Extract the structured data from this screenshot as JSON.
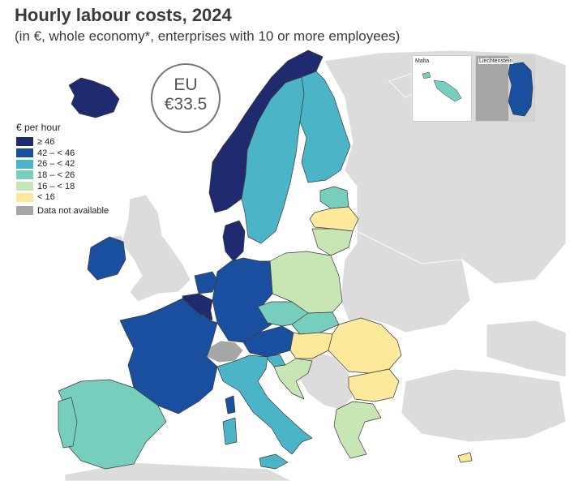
{
  "title": "Hourly labour costs, 2024",
  "subtitle": "(in €, whole economy*, enterprises with 10 or more employees)",
  "eu": {
    "label": "EU",
    "value": "€33.5"
  },
  "legend": {
    "title": "€ per hour",
    "items": [
      {
        "label": "≥ 46",
        "color": "#1f2b6e"
      },
      {
        "label": "42 – < 46",
        "color": "#1a4fa0"
      },
      {
        "label": "26 – < 42",
        "color": "#4bb5c7"
      },
      {
        "label": "18 – < 26",
        "color": "#77cebd"
      },
      {
        "label": "16 – < 18",
        "color": "#c8e6b4"
      },
      {
        "label": "< 16",
        "color": "#fce99c"
      }
    ],
    "not_available": {
      "label": "Data not available",
      "color": "#a6a6a6"
    }
  },
  "insets": {
    "malta": "Malta",
    "liechtenstein": "Liechtenstein"
  },
  "colors": {
    "non_eu": "#dcdcdc",
    "sea": "#ffffff"
  }
}
